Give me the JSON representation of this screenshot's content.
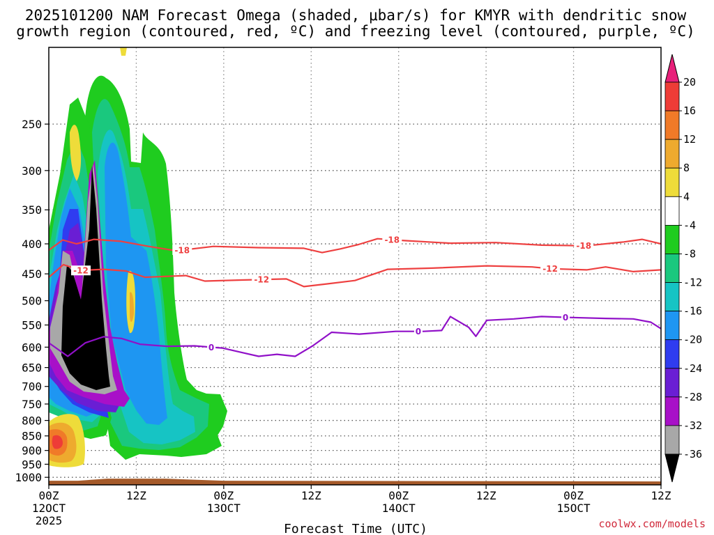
{
  "figure": {
    "title_line1": "2025101200 NAM Forecast Omega (shaded, μbar/s) for KMYR with dendritic snow",
    "title_line2": "growth region (contoured, red, ºC) and freezing level (contoured, purple, ºC)",
    "credit": "coolwx.com/models"
  },
  "chart_data": {
    "type": "heatmap",
    "title": "2025101200 NAM Forecast Omega (shaded, μbar/s) for KMYR with dendritic snow growth region (contoured, red, ºC) and freezing level (contoured, purple, ºC)",
    "xlabel": "Forecast Time (UTC)",
    "ylabel": "",
    "x_range_hours": [
      0,
      84
    ],
    "y_range_hpa": [
      1030,
      185
    ],
    "y_scale": "log-pressure",
    "grid": true,
    "x_ticks": [
      {
        "hour": 0,
        "line1": "00Z",
        "line2": "12OCT",
        "line3": "2025"
      },
      {
        "hour": 12,
        "line1": "12Z",
        "line2": "",
        "line3": ""
      },
      {
        "hour": 24,
        "line1": "00Z",
        "line2": "13OCT",
        "line3": ""
      },
      {
        "hour": 36,
        "line1": "12Z",
        "line2": "",
        "line3": ""
      },
      {
        "hour": 48,
        "line1": "00Z",
        "line2": "14OCT",
        "line3": ""
      },
      {
        "hour": 60,
        "line1": "12Z",
        "line2": "",
        "line3": ""
      },
      {
        "hour": 72,
        "line1": "00Z",
        "line2": "15OCT",
        "line3": ""
      },
      {
        "hour": 84,
        "line1": "12Z",
        "line2": "",
        "line3": ""
      }
    ],
    "y_ticks": [
      "250",
      "300",
      "350",
      "400",
      "450",
      "500",
      "550",
      "600",
      "650",
      "700",
      "750",
      "800",
      "850",
      "900",
      "950",
      "1000"
    ],
    "colorbar": {
      "labels": [
        "20",
        "16",
        "12",
        "8",
        "4",
        "-4",
        "-8",
        "-12",
        "-16",
        "-20",
        "-24",
        "-28",
        "-32",
        "-36"
      ],
      "bins": [
        {
          "range": ">20",
          "color": "#e8207a"
        },
        {
          "range": "16 to 20",
          "color": "#ee3c37"
        },
        {
          "range": "12 to 16",
          "color": "#f07a28"
        },
        {
          "range": "8 to 12",
          "color": "#eeaa2e"
        },
        {
          "range": "4 to 8",
          "color": "#eedc3a"
        },
        {
          "range": "-4 to 4",
          "color": "#ffffff"
        },
        {
          "range": "-8 to -4",
          "color": "#1fcc1f"
        },
        {
          "range": "-12 to -8",
          "color": "#1ac87e"
        },
        {
          "range": "-16 to -12",
          "color": "#16c4c4"
        },
        {
          "range": "-20 to -16",
          "color": "#1e96f2"
        },
        {
          "range": "-24 to -20",
          "color": "#2f3cf0"
        },
        {
          "range": "-28 to -24",
          "color": "#6a1ed4"
        },
        {
          "range": "-32 to -28",
          "color": "#a810c8"
        },
        {
          "range": "-36 to -32",
          "color": "#a8a8a8"
        },
        {
          "range": "<-36",
          "color": "#000000"
        }
      ]
    },
    "contours": [
      {
        "name": "-18",
        "color": "#ee4040",
        "labels_at_hours": [
          18.3,
          47.1,
          73.4
        ],
        "points": [
          [
            0,
            410
          ],
          [
            1.9,
            394
          ],
          [
            3.8,
            400
          ],
          [
            6.2,
            393
          ],
          [
            9.9,
            396
          ],
          [
            13.7,
            404
          ],
          [
            17.5,
            411
          ],
          [
            22.6,
            404
          ],
          [
            28.8,
            406
          ],
          [
            35,
            407
          ],
          [
            37.5,
            414
          ],
          [
            40,
            408
          ],
          [
            42.5,
            401
          ],
          [
            45.1,
            392
          ],
          [
            48.8,
            395
          ],
          [
            55.1,
            399
          ],
          [
            61.3,
            398
          ],
          [
            67.6,
            402
          ],
          [
            73.8,
            403
          ],
          [
            78.9,
            397
          ],
          [
            81.4,
            393
          ],
          [
            84,
            400
          ]
        ]
      },
      {
        "name": "-12",
        "color": "#ee4040",
        "labels_at_hours": [
          4.4,
          29.2,
          68.8
        ],
        "points": [
          [
            0,
            456
          ],
          [
            2,
            434
          ],
          [
            4.4,
            444
          ],
          [
            7.5,
            442
          ],
          [
            10.6,
            445
          ],
          [
            13.2,
            456
          ],
          [
            18.8,
            453
          ],
          [
            21.4,
            463
          ],
          [
            26.4,
            461
          ],
          [
            32.6,
            459
          ],
          [
            35,
            473
          ],
          [
            38.2,
            468
          ],
          [
            42,
            462
          ],
          [
            46.5,
            442
          ],
          [
            52.6,
            440
          ],
          [
            60.1,
            436
          ],
          [
            66.3,
            438
          ],
          [
            68.8,
            441
          ],
          [
            73.8,
            443
          ],
          [
            76.4,
            438
          ],
          [
            80.2,
            446
          ],
          [
            84,
            443
          ]
        ]
      },
      {
        "name": "0",
        "color": "#9010c8",
        "labels_at_hours": [
          22.3,
          50.7,
          70.9
        ],
        "points": [
          [
            0,
            590
          ],
          [
            2.6,
            622
          ],
          [
            5,
            590
          ],
          [
            7.5,
            576
          ],
          [
            10,
            580
          ],
          [
            12.5,
            593
          ],
          [
            16.2,
            598
          ],
          [
            20,
            597
          ],
          [
            23.8,
            602
          ],
          [
            26.3,
            612
          ],
          [
            28.8,
            622
          ],
          [
            31.3,
            617
          ],
          [
            33.8,
            622
          ],
          [
            36.2,
            597
          ],
          [
            38.8,
            566
          ],
          [
            42.6,
            570
          ],
          [
            47.6,
            564
          ],
          [
            51.4,
            564
          ],
          [
            53.9,
            562
          ],
          [
            55.1,
            532
          ],
          [
            57.6,
            555
          ],
          [
            58.6,
            575
          ],
          [
            60.1,
            540
          ],
          [
            63.8,
            537
          ],
          [
            67.6,
            532
          ],
          [
            71.4,
            534
          ],
          [
            76.4,
            536
          ],
          [
            80.2,
            537
          ],
          [
            82.6,
            544
          ],
          [
            84,
            558
          ]
        ]
      }
    ],
    "terrain": {
      "color": "#a55a2a",
      "pressure_hpa": 1008
    }
  }
}
